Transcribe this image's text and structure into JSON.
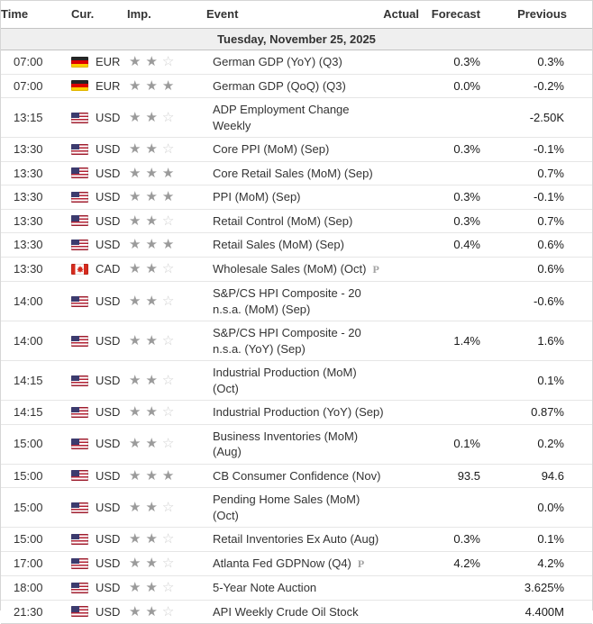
{
  "table": {
    "headers": {
      "time": "Time",
      "cur": "Cur.",
      "imp": "Imp.",
      "event": "Event",
      "actual": "Actual",
      "forecast": "Forecast",
      "previous": "Previous"
    },
    "date_header": "Tuesday, November 25, 2025",
    "rows": [
      {
        "time": "07:00",
        "currency": "EUR",
        "flag": "de",
        "importance": 2,
        "event_lines": [
          "German GDP (YoY) (Q3)"
        ],
        "preliminary": false,
        "actual": "",
        "forecast": "0.3%",
        "previous": "0.3%"
      },
      {
        "time": "07:00",
        "currency": "EUR",
        "flag": "de",
        "importance": 3,
        "event_lines": [
          "German GDP (QoQ) (Q3)"
        ],
        "preliminary": false,
        "actual": "",
        "forecast": "0.0%",
        "previous": "-0.2%"
      },
      {
        "time": "13:15",
        "currency": "USD",
        "flag": "us",
        "importance": 2,
        "event_lines": [
          "ADP Employment Change",
          "Weekly"
        ],
        "preliminary": false,
        "actual": "",
        "forecast": "",
        "previous": "-2.50K"
      },
      {
        "time": "13:30",
        "currency": "USD",
        "flag": "us",
        "importance": 2,
        "event_lines": [
          "Core PPI (MoM) (Sep)"
        ],
        "preliminary": false,
        "actual": "",
        "forecast": "0.3%",
        "previous": "-0.1%"
      },
      {
        "time": "13:30",
        "currency": "USD",
        "flag": "us",
        "importance": 3,
        "event_lines": [
          "Core Retail Sales (MoM) (Sep)"
        ],
        "preliminary": false,
        "actual": "",
        "forecast": "",
        "previous": "0.7%"
      },
      {
        "time": "13:30",
        "currency": "USD",
        "flag": "us",
        "importance": 3,
        "event_lines": [
          "PPI (MoM) (Sep)"
        ],
        "preliminary": false,
        "actual": "",
        "forecast": "0.3%",
        "previous": "-0.1%"
      },
      {
        "time": "13:30",
        "currency": "USD",
        "flag": "us",
        "importance": 2,
        "event_lines": [
          "Retail Control (MoM) (Sep)"
        ],
        "preliminary": false,
        "actual": "",
        "forecast": "0.3%",
        "previous": "0.7%"
      },
      {
        "time": "13:30",
        "currency": "USD",
        "flag": "us",
        "importance": 3,
        "event_lines": [
          "Retail Sales (MoM) (Sep)"
        ],
        "preliminary": false,
        "actual": "",
        "forecast": "0.4%",
        "previous": "0.6%"
      },
      {
        "time": "13:30",
        "currency": "CAD",
        "flag": "ca",
        "importance": 2,
        "event_lines": [
          "Wholesale Sales (MoM) (Oct)"
        ],
        "preliminary": true,
        "actual": "",
        "forecast": "",
        "previous": "0.6%"
      },
      {
        "time": "14:00",
        "currency": "USD",
        "flag": "us",
        "importance": 2,
        "event_lines": [
          "S&P/CS HPI Composite - 20",
          "n.s.a. (MoM) (Sep)"
        ],
        "preliminary": false,
        "actual": "",
        "forecast": "",
        "previous": "-0.6%"
      },
      {
        "time": "14:00",
        "currency": "USD",
        "flag": "us",
        "importance": 2,
        "event_lines": [
          "S&P/CS HPI Composite - 20",
          "n.s.a. (YoY) (Sep)"
        ],
        "preliminary": false,
        "actual": "",
        "forecast": "1.4%",
        "previous": "1.6%"
      },
      {
        "time": "14:15",
        "currency": "USD",
        "flag": "us",
        "importance": 2,
        "event_lines": [
          "Industrial Production (MoM)",
          "(Oct)"
        ],
        "preliminary": false,
        "actual": "",
        "forecast": "",
        "previous": "0.1%"
      },
      {
        "time": "14:15",
        "currency": "USD",
        "flag": "us",
        "importance": 2,
        "event_lines": [
          "Industrial Production (YoY) (Sep)"
        ],
        "preliminary": false,
        "actual": "",
        "forecast": "",
        "previous": "0.87%"
      },
      {
        "time": "15:00",
        "currency": "USD",
        "flag": "us",
        "importance": 2,
        "event_lines": [
          "Business Inventories (MoM)",
          "(Aug)"
        ],
        "preliminary": false,
        "actual": "",
        "forecast": "0.1%",
        "previous": "0.2%"
      },
      {
        "time": "15:00",
        "currency": "USD",
        "flag": "us",
        "importance": 3,
        "event_lines": [
          "CB Consumer Confidence (Nov)"
        ],
        "preliminary": false,
        "actual": "",
        "forecast": "93.5",
        "previous": "94.6"
      },
      {
        "time": "15:00",
        "currency": "USD",
        "flag": "us",
        "importance": 2,
        "event_lines": [
          "Pending Home Sales (MoM)",
          "(Oct)"
        ],
        "preliminary": false,
        "actual": "",
        "forecast": "",
        "previous": "0.0%"
      },
      {
        "time": "15:00",
        "currency": "USD",
        "flag": "us",
        "importance": 2,
        "event_lines": [
          "Retail Inventories Ex Auto (Aug)"
        ],
        "preliminary": false,
        "actual": "",
        "forecast": "0.3%",
        "previous": "0.1%"
      },
      {
        "time": "17:00",
        "currency": "USD",
        "flag": "us",
        "importance": 2,
        "event_lines": [
          "Atlanta Fed GDPNow (Q4)"
        ],
        "preliminary": true,
        "actual": "",
        "forecast": "4.2%",
        "previous": "4.2%"
      },
      {
        "time": "18:00",
        "currency": "USD",
        "flag": "us",
        "importance": 2,
        "event_lines": [
          "5-Year Note Auction"
        ],
        "preliminary": false,
        "actual": "",
        "forecast": "",
        "previous": "3.625%"
      },
      {
        "time": "21:30",
        "currency": "USD",
        "flag": "us",
        "importance": 2,
        "event_lines": [
          "API Weekly Crude Oil Stock"
        ],
        "preliminary": false,
        "actual": "",
        "forecast": "",
        "previous": "4.400M"
      }
    ],
    "importance_max": 3
  },
  "icons": {
    "star_filled": "★",
    "star_empty": "☆",
    "preliminary": "P"
  },
  "colors": {
    "header_text": "#333333",
    "date_bar_bg": "#efefef",
    "row_divider": "#e6e6e6",
    "star_filled": "#9b9b9b",
    "star_empty": "#cfcfcf",
    "value_text": "#1a1a1a",
    "flag_de": [
      "#262626",
      "#dd0000",
      "#ffce00"
    ],
    "flag_us": [
      "#b22234",
      "#ffffff",
      "#3c3b6e"
    ],
    "flag_ca": [
      "#d52b1e",
      "#ffffff"
    ]
  }
}
